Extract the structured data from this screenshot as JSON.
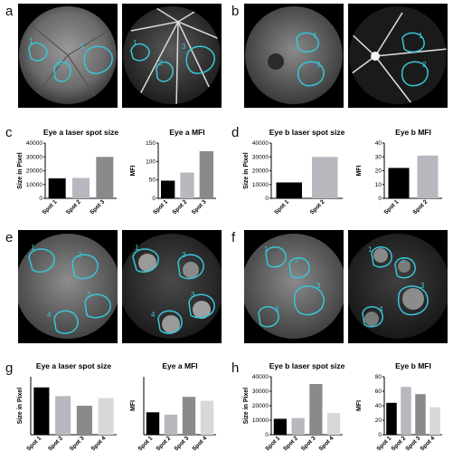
{
  "panels": {
    "a": "a",
    "b": "b",
    "c": "c",
    "d": "d",
    "e": "e",
    "f": "f",
    "g": "g",
    "h": "h"
  },
  "image_labels": {
    "a_left": [
      "1",
      "2",
      "3"
    ],
    "a_right": [
      "1",
      "2",
      "3"
    ],
    "b_left": [
      "1",
      "2"
    ],
    "b_right": [
      "1",
      "2"
    ],
    "e_left": [
      "1",
      "2",
      "3",
      "4"
    ],
    "e_right": [
      "1",
      "2",
      "3",
      "4"
    ],
    "f_left": [
      "1",
      "2",
      "3",
      "4"
    ],
    "f_right": [
      "1",
      "2",
      "3",
      "4"
    ]
  },
  "colors": {
    "outline": "#37c6d8",
    "black": "#000000",
    "gray_light": "#b8b8bf",
    "gray_mid": "#8a8a8a",
    "gray_pale": "#d8d8d8"
  },
  "chart_data": [
    {
      "id": "c1",
      "type": "bar",
      "title": "Eye a laser spot size",
      "ylabel": "Size in Pixel",
      "categories": [
        "Spot 1",
        "Spot 2",
        "Spot 3"
      ],
      "values": [
        14500,
        14800,
        30000
      ],
      "ylim": [
        0,
        40000
      ],
      "yticks": [
        "0",
        "10000",
        "20000",
        "30000",
        "40000"
      ],
      "ytick_values": [
        0,
        10000,
        20000,
        30000,
        40000
      ],
      "colors": [
        "#000000",
        "#b8b8bf",
        "#8a8a8a"
      ]
    },
    {
      "id": "c2",
      "type": "bar",
      "title": "Eye a MFI",
      "ylabel": "MFI",
      "categories": [
        "Spot 1",
        "Spot 2",
        "Spot 3"
      ],
      "values": [
        48,
        70,
        128
      ],
      "ylim": [
        0,
        150
      ],
      "yticks": [
        "0",
        "50",
        "100",
        "150"
      ],
      "ytick_values": [
        0,
        50,
        100,
        150
      ],
      "colors": [
        "#000000",
        "#b8b8bf",
        "#8a8a8a"
      ]
    },
    {
      "id": "d1",
      "type": "bar",
      "title": "Eye b laser spot size",
      "ylabel": "Size in Pixel",
      "categories": [
        "Spot 1",
        "Spot 2"
      ],
      "values": [
        11500,
        30000
      ],
      "ylim": [
        0,
        40000
      ],
      "yticks": [
        "0",
        "10000",
        "20000",
        "30000",
        "40000"
      ],
      "ytick_values": [
        0,
        10000,
        20000,
        30000,
        40000
      ],
      "colors": [
        "#000000",
        "#b8b8bf"
      ]
    },
    {
      "id": "d2",
      "type": "bar",
      "title": "Eye b MFI",
      "ylabel": "MFI",
      "categories": [
        "Spot 1",
        "Spot 2"
      ],
      "values": [
        22,
        31
      ],
      "ylim": [
        0,
        40
      ],
      "yticks": [
        "0",
        "10",
        "20",
        "30",
        "40"
      ],
      "ytick_values": [
        0,
        10,
        20,
        30,
        40
      ],
      "colors": [
        "#000000",
        "#b8b8bf"
      ]
    },
    {
      "id": "g1",
      "type": "bar",
      "title": "Eye a laser spot size",
      "ylabel": "Size in Pixel",
      "categories": [
        "Spot 1",
        "Spot 2",
        "Spot 3",
        "Spot 4"
      ],
      "values": [
        24500,
        20000,
        15000,
        19000
      ],
      "ylim": [
        0,
        30000
      ],
      "yticks": [],
      "ytick_values": [],
      "colors": [
        "#000000",
        "#b8b8bf",
        "#8a8a8a",
        "#d8d8d8"
      ]
    },
    {
      "id": "g2",
      "type": "bar",
      "title": "Eye a MFI",
      "ylabel": "MFI",
      "categories": [
        "Spot 1",
        "Spot 2",
        "Spot 3",
        "Spot 4"
      ],
      "values": [
        58,
        52,
        98,
        88
      ],
      "ylim": [
        0,
        150
      ],
      "yticks": [],
      "ytick_values": [],
      "colors": [
        "#000000",
        "#b8b8bf",
        "#8a8a8a",
        "#d8d8d8"
      ]
    },
    {
      "id": "h1",
      "type": "bar",
      "title": "Eye b laser spot size",
      "ylabel": "Size in Pixel",
      "categories": [
        "Spot 1",
        "Spot 2",
        "Spot 3",
        "Spot 4"
      ],
      "values": [
        11000,
        11500,
        35000,
        15000
      ],
      "ylim": [
        0,
        40000
      ],
      "yticks": [
        "0",
        "10000",
        "20000",
        "30000",
        "40000"
      ],
      "ytick_values": [
        0,
        10000,
        20000,
        30000,
        40000
      ],
      "colors": [
        "#000000",
        "#b8b8bf",
        "#8a8a8a",
        "#d8d8d8"
      ]
    },
    {
      "id": "h2",
      "type": "bar",
      "title": "Eye b MFI",
      "ylabel": "MFI",
      "categories": [
        "Spot 1",
        "Spot 2",
        "Spot 3",
        "Spot 4"
      ],
      "values": [
        44,
        66,
        56,
        38
      ],
      "ylim": [
        0,
        80
      ],
      "yticks": [
        "0",
        "20",
        "40",
        "60",
        "80"
      ],
      "ytick_values": [
        0,
        20,
        40,
        60,
        80
      ],
      "colors": [
        "#000000",
        "#b8b8bf",
        "#8a8a8a",
        "#d8d8d8"
      ]
    }
  ]
}
